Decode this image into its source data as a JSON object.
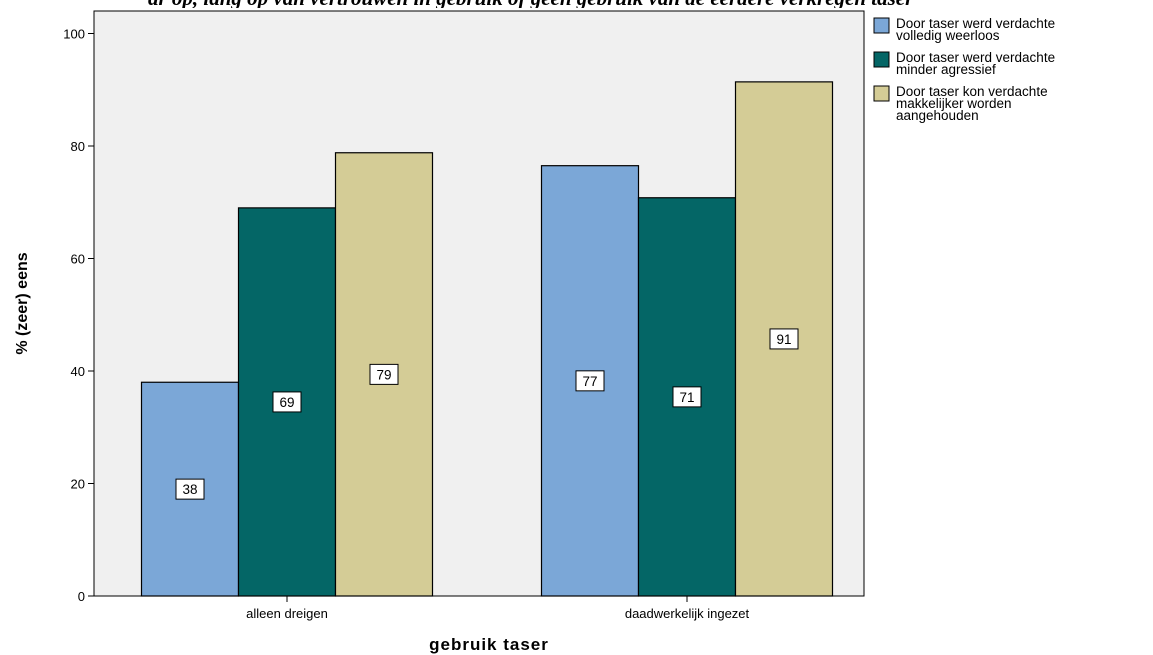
{
  "header": {
    "caption": "ar op, lang op van vertrouwen in gebruik of geen gebruik van de eerdere verkregen taser"
  },
  "chart_data": {
    "type": "bar",
    "categories": [
      "alleen dreigen",
      "daadwerkelijk ingezet"
    ],
    "series": [
      {
        "name": [
          "Door taser werd verdachte",
          "volledig weerloos"
        ],
        "values": [
          38,
          76.5
        ],
        "labels": [
          "38",
          "77"
        ],
        "color": "#7ba7d7"
      },
      {
        "name": [
          "Door taser werd verdachte",
          "minder agressief"
        ],
        "values": [
          69,
          70.8
        ],
        "labels": [
          "69",
          "71"
        ],
        "color": "#046666"
      },
      {
        "name": [
          "Door taser kon verdachte",
          "makkelijker worden",
          "aangehouden"
        ],
        "values": [
          78.8,
          91.4
        ],
        "labels": [
          "79",
          "91"
        ],
        "color": "#d4cc96"
      }
    ],
    "ylim": [
      0,
      104
    ],
    "yticks": [
      0,
      20,
      40,
      60,
      80,
      100
    ],
    "xlabel": "gebruik taser",
    "ylabel": "% (zeer) eens",
    "grid": false,
    "legend": "right",
    "plot_background": "#f0f0f0"
  }
}
